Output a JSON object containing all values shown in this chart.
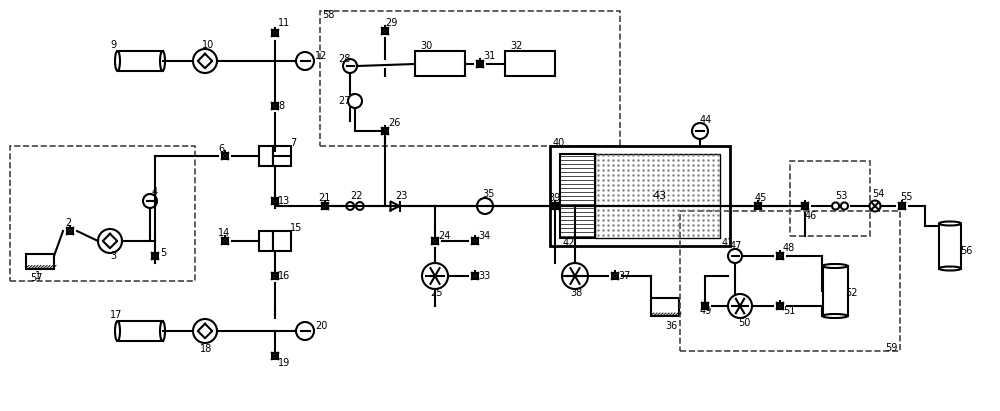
{
  "fig_width": 10.0,
  "fig_height": 4.11,
  "dpi": 100,
  "bg_color": "#ffffff",
  "line_color": "#000000",
  "line_width": 1.5,
  "dashed_box_color": "#333333"
}
